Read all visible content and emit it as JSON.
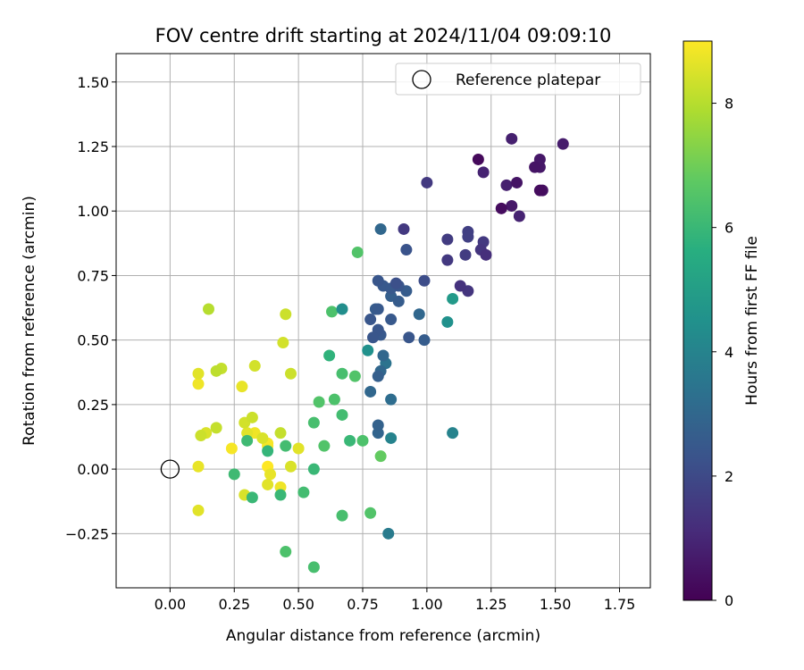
{
  "chart_data": {
    "type": "scatter",
    "title": "FOV centre drift starting at 2024/11/04 09:09:10",
    "xlabel": "Angular distance from reference (arcmin)",
    "ylabel": "Rotation from reference (arcmin)",
    "xlim": [
      -0.21,
      1.87
    ],
    "ylim": [
      -0.46,
      1.61
    ],
    "xticks": [
      0.0,
      0.25,
      0.5,
      0.75,
      1.0,
      1.25,
      1.5,
      1.75
    ],
    "xtick_labels": [
      "0.00",
      "0.25",
      "0.50",
      "0.75",
      "1.00",
      "1.25",
      "1.50",
      "1.75"
    ],
    "yticks": [
      -0.25,
      0.0,
      0.25,
      0.5,
      0.75,
      1.0,
      1.25,
      1.5
    ],
    "ytick_labels": [
      "−0.25",
      "0.00",
      "0.25",
      "0.50",
      "0.75",
      "1.00",
      "1.25",
      "1.50"
    ],
    "grid": true,
    "legend": {
      "placement": "top-right",
      "entries": [
        {
          "label": "Reference platepar",
          "marker": "open-circle",
          "color": "#000000"
        }
      ]
    },
    "reference_point": {
      "x": 0.0,
      "y": 0.0
    },
    "colorbar": {
      "label": "Hours from first FF file",
      "colormap": "viridis",
      "range": [
        0,
        9
      ],
      "ticks": [
        0,
        2,
        4,
        6,
        8
      ],
      "tick_labels": [
        "0",
        "2",
        "4",
        "6",
        "8"
      ],
      "stops": [
        "#440154",
        "#472c7a",
        "#3b528b",
        "#2c728e",
        "#21918c",
        "#28ae80",
        "#5ec962",
        "#addc30",
        "#fde725"
      ]
    },
    "points": [
      {
        "x": 1.2,
        "y": 1.2,
        "t": 0.2
      },
      {
        "x": 1.33,
        "y": 1.28,
        "t": 0.8
      },
      {
        "x": 1.53,
        "y": 1.26,
        "t": 0.7
      },
      {
        "x": 1.44,
        "y": 1.2,
        "t": 0.6
      },
      {
        "x": 1.42,
        "y": 1.17,
        "t": 0.5
      },
      {
        "x": 1.44,
        "y": 1.17,
        "t": 0.6
      },
      {
        "x": 1.22,
        "y": 1.15,
        "t": 0.9
      },
      {
        "x": 1.31,
        "y": 1.1,
        "t": 0.8
      },
      {
        "x": 1.35,
        "y": 1.11,
        "t": 0.5
      },
      {
        "x": 1.44,
        "y": 1.08,
        "t": 0.3
      },
      {
        "x": 1.45,
        "y": 1.08,
        "t": 0.4
      },
      {
        "x": 1.29,
        "y": 1.01,
        "t": 0.3
      },
      {
        "x": 1.33,
        "y": 1.02,
        "t": 0.6
      },
      {
        "x": 1.36,
        "y": 0.98,
        "t": 0.9
      },
      {
        "x": 1.0,
        "y": 1.11,
        "t": 1.5
      },
      {
        "x": 0.91,
        "y": 0.93,
        "t": 1.5
      },
      {
        "x": 1.08,
        "y": 0.89,
        "t": 1.6
      },
      {
        "x": 1.16,
        "y": 0.92,
        "t": 1.7
      },
      {
        "x": 1.16,
        "y": 0.9,
        "t": 1.7
      },
      {
        "x": 1.22,
        "y": 0.88,
        "t": 1.5
      },
      {
        "x": 1.21,
        "y": 0.85,
        "t": 1.4
      },
      {
        "x": 1.23,
        "y": 0.83,
        "t": 1.2
      },
      {
        "x": 1.15,
        "y": 0.83,
        "t": 1.6
      },
      {
        "x": 1.08,
        "y": 0.81,
        "t": 1.5
      },
      {
        "x": 1.13,
        "y": 0.71,
        "t": 1.3
      },
      {
        "x": 1.16,
        "y": 0.69,
        "t": 1.4
      },
      {
        "x": 0.82,
        "y": 0.93,
        "t": 3.0
      },
      {
        "x": 0.92,
        "y": 0.85,
        "t": 2.3
      },
      {
        "x": 0.81,
        "y": 0.73,
        "t": 2.4
      },
      {
        "x": 0.83,
        "y": 0.71,
        "t": 2.5
      },
      {
        "x": 0.86,
        "y": 0.7,
        "t": 2.5
      },
      {
        "x": 0.88,
        "y": 0.72,
        "t": 2.2
      },
      {
        "x": 0.89,
        "y": 0.71,
        "t": 2.4
      },
      {
        "x": 0.92,
        "y": 0.69,
        "t": 2.6
      },
      {
        "x": 0.99,
        "y": 0.73,
        "t": 2.1
      },
      {
        "x": 0.86,
        "y": 0.67,
        "t": 2.7
      },
      {
        "x": 0.89,
        "y": 0.65,
        "t": 2.6
      },
      {
        "x": 0.8,
        "y": 0.62,
        "t": 2.6
      },
      {
        "x": 0.81,
        "y": 0.62,
        "t": 2.5
      },
      {
        "x": 0.97,
        "y": 0.6,
        "t": 3.0
      },
      {
        "x": 0.78,
        "y": 0.58,
        "t": 2.4
      },
      {
        "x": 0.86,
        "y": 0.58,
        "t": 2.5
      },
      {
        "x": 0.81,
        "y": 0.54,
        "t": 2.4
      },
      {
        "x": 0.82,
        "y": 0.52,
        "t": 2.5
      },
      {
        "x": 0.79,
        "y": 0.51,
        "t": 2.4
      },
      {
        "x": 0.93,
        "y": 0.51,
        "t": 2.4
      },
      {
        "x": 0.99,
        "y": 0.5,
        "t": 2.6
      },
      {
        "x": 0.83,
        "y": 0.44,
        "t": 3.0
      },
      {
        "x": 0.84,
        "y": 0.41,
        "t": 3.4
      },
      {
        "x": 0.82,
        "y": 0.38,
        "t": 3.0
      },
      {
        "x": 0.81,
        "y": 0.36,
        "t": 2.7
      },
      {
        "x": 0.78,
        "y": 0.3,
        "t": 3.0
      },
      {
        "x": 0.86,
        "y": 0.27,
        "t": 3.2
      },
      {
        "x": 0.81,
        "y": 0.17,
        "t": 2.8
      },
      {
        "x": 0.81,
        "y": 0.14,
        "t": 2.9
      },
      {
        "x": 0.86,
        "y": 0.12,
        "t": 4.0
      },
      {
        "x": 1.1,
        "y": 0.14,
        "t": 4.0
      },
      {
        "x": 1.1,
        "y": 0.66,
        "t": 4.8
      },
      {
        "x": 1.08,
        "y": 0.57,
        "t": 4.5
      },
      {
        "x": 0.67,
        "y": 0.62,
        "t": 4.4
      },
      {
        "x": 0.77,
        "y": 0.46,
        "t": 4.5
      },
      {
        "x": 0.85,
        "y": -0.25,
        "t": 3.7
      },
      {
        "x": 0.73,
        "y": 0.84,
        "t": 6.5
      },
      {
        "x": 0.63,
        "y": 0.61,
        "t": 6.4
      },
      {
        "x": 0.62,
        "y": 0.44,
        "t": 5.8
      },
      {
        "x": 0.67,
        "y": 0.37,
        "t": 6.3
      },
      {
        "x": 0.72,
        "y": 0.36,
        "t": 6.5
      },
      {
        "x": 0.58,
        "y": 0.26,
        "t": 6.5
      },
      {
        "x": 0.64,
        "y": 0.27,
        "t": 6.4
      },
      {
        "x": 0.67,
        "y": 0.21,
        "t": 6.2
      },
      {
        "x": 0.56,
        "y": 0.18,
        "t": 6.3
      },
      {
        "x": 0.6,
        "y": 0.09,
        "t": 6.5
      },
      {
        "x": 0.7,
        "y": 0.11,
        "t": 6.0
      },
      {
        "x": 0.75,
        "y": 0.11,
        "t": 6.4
      },
      {
        "x": 0.82,
        "y": 0.05,
        "t": 6.8
      },
      {
        "x": 0.56,
        "y": 0.0,
        "t": 6.0
      },
      {
        "x": 0.52,
        "y": -0.09,
        "t": 6.2
      },
      {
        "x": 0.67,
        "y": -0.18,
        "t": 6.3
      },
      {
        "x": 0.78,
        "y": -0.17,
        "t": 6.5
      },
      {
        "x": 0.45,
        "y": -0.32,
        "t": 6.4
      },
      {
        "x": 0.56,
        "y": -0.38,
        "t": 6.3
      },
      {
        "x": 0.45,
        "y": 0.09,
        "t": 6.2
      },
      {
        "x": 0.38,
        "y": 0.07,
        "t": 5.9
      },
      {
        "x": 0.3,
        "y": 0.11,
        "t": 6.1
      },
      {
        "x": 0.25,
        "y": -0.02,
        "t": 6.1
      },
      {
        "x": 0.32,
        "y": -0.11,
        "t": 6.0
      },
      {
        "x": 0.43,
        "y": -0.1,
        "t": 6.0
      },
      {
        "x": 0.15,
        "y": 0.62,
        "t": 8.0
      },
      {
        "x": 0.45,
        "y": 0.6,
        "t": 8.3
      },
      {
        "x": 0.44,
        "y": 0.49,
        "t": 8.4
      },
      {
        "x": 0.47,
        "y": 0.37,
        "t": 8.3
      },
      {
        "x": 0.33,
        "y": 0.4,
        "t": 8.4
      },
      {
        "x": 0.2,
        "y": 0.39,
        "t": 8.2
      },
      {
        "x": 0.18,
        "y": 0.38,
        "t": 8.1
      },
      {
        "x": 0.11,
        "y": 0.37,
        "t": 8.6
      },
      {
        "x": 0.11,
        "y": 0.33,
        "t": 8.8
      },
      {
        "x": 0.28,
        "y": 0.32,
        "t": 8.7
      },
      {
        "x": 0.29,
        "y": 0.18,
        "t": 8.4
      },
      {
        "x": 0.32,
        "y": 0.2,
        "t": 8.3
      },
      {
        "x": 0.18,
        "y": 0.16,
        "t": 8.2
      },
      {
        "x": 0.14,
        "y": 0.14,
        "t": 8.5
      },
      {
        "x": 0.12,
        "y": 0.13,
        "t": 8.3
      },
      {
        "x": 0.3,
        "y": 0.14,
        "t": 8.6
      },
      {
        "x": 0.33,
        "y": 0.14,
        "t": 8.8
      },
      {
        "x": 0.36,
        "y": 0.12,
        "t": 8.5
      },
      {
        "x": 0.43,
        "y": 0.14,
        "t": 8.2
      },
      {
        "x": 0.38,
        "y": 0.1,
        "t": 8.9
      },
      {
        "x": 0.38,
        "y": 0.09,
        "t": 9.0
      },
      {
        "x": 0.5,
        "y": 0.08,
        "t": 8.6
      },
      {
        "x": 0.24,
        "y": 0.08,
        "t": 8.9
      },
      {
        "x": 0.47,
        "y": 0.01,
        "t": 8.5
      },
      {
        "x": 0.11,
        "y": 0.01,
        "t": 8.7
      },
      {
        "x": 0.38,
        "y": 0.01,
        "t": 9.0
      },
      {
        "x": 0.39,
        "y": -0.02,
        "t": 8.7
      },
      {
        "x": 0.38,
        "y": -0.06,
        "t": 8.6
      },
      {
        "x": 0.43,
        "y": -0.07,
        "t": 8.8
      },
      {
        "x": 0.29,
        "y": -0.1,
        "t": 8.5
      },
      {
        "x": 0.11,
        "y": -0.16,
        "t": 8.6
      }
    ]
  }
}
